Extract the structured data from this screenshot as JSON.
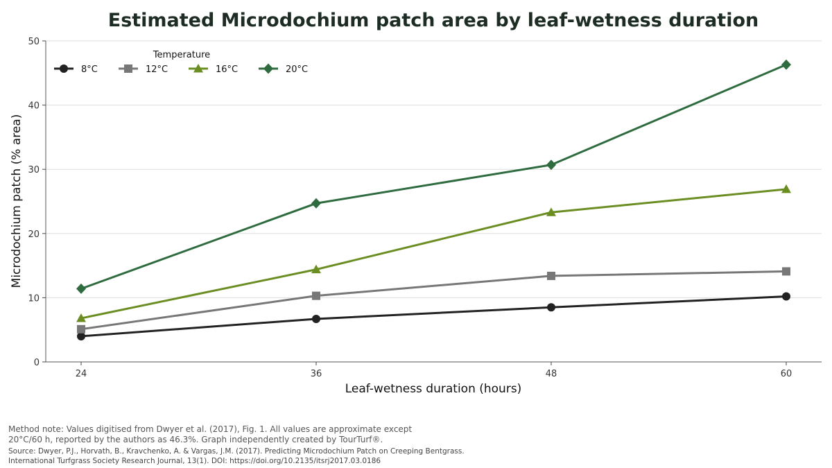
{
  "chart_data": {
    "type": "line",
    "title": "Estimated Microdochium patch area by leaf-wetness duration",
    "xlabel": "Leaf-wetness duration (hours)",
    "ylabel": "Microdochium patch (% area)",
    "x": [
      24,
      36,
      48,
      60
    ],
    "xticks": [
      "24",
      "36",
      "48",
      "60"
    ],
    "ylim": [
      0,
      50
    ],
    "yticks": [
      "0",
      "10",
      "20",
      "30",
      "40",
      "50"
    ],
    "grid": "horizontal",
    "legend": {
      "title": "Temperature",
      "placement": "top-left"
    },
    "series": [
      {
        "name": "8°C",
        "values": [
          4.0,
          6.7,
          8.5,
          10.2
        ],
        "color": "#222222",
        "marker": "circle"
      },
      {
        "name": "12°C",
        "values": [
          5.1,
          10.3,
          13.4,
          14.1
        ],
        "color": "#777777",
        "marker": "square"
      },
      {
        "name": "16°C",
        "values": [
          6.8,
          14.4,
          23.3,
          26.9
        ],
        "color": "#6b8e23",
        "marker": "triangle"
      },
      {
        "name": "20°C",
        "values": [
          11.4,
          24.7,
          30.7,
          46.3
        ],
        "color": "#2e6b3f",
        "marker": "diamond"
      }
    ]
  },
  "footer": {
    "note_line1": "Method note: Values digitised from Dwyer et al. (2017), Fig. 1. All values are approximate except",
    "note_line2": "20°C/60 h, reported by the authors as 46.3%. Graph independently created by TourTurf®.",
    "source_line1": "Source: Dwyer, P.J., Horvath, B., Kravchenko, A. & Vargas, J.M. (2017). Predicting Microdochium Patch on Creeping Bentgrass.",
    "source_line2": "International Turfgrass Society Research Journal, 13(1). DOI: https://doi.org/10.2135/itsrj2017.03.0186"
  }
}
